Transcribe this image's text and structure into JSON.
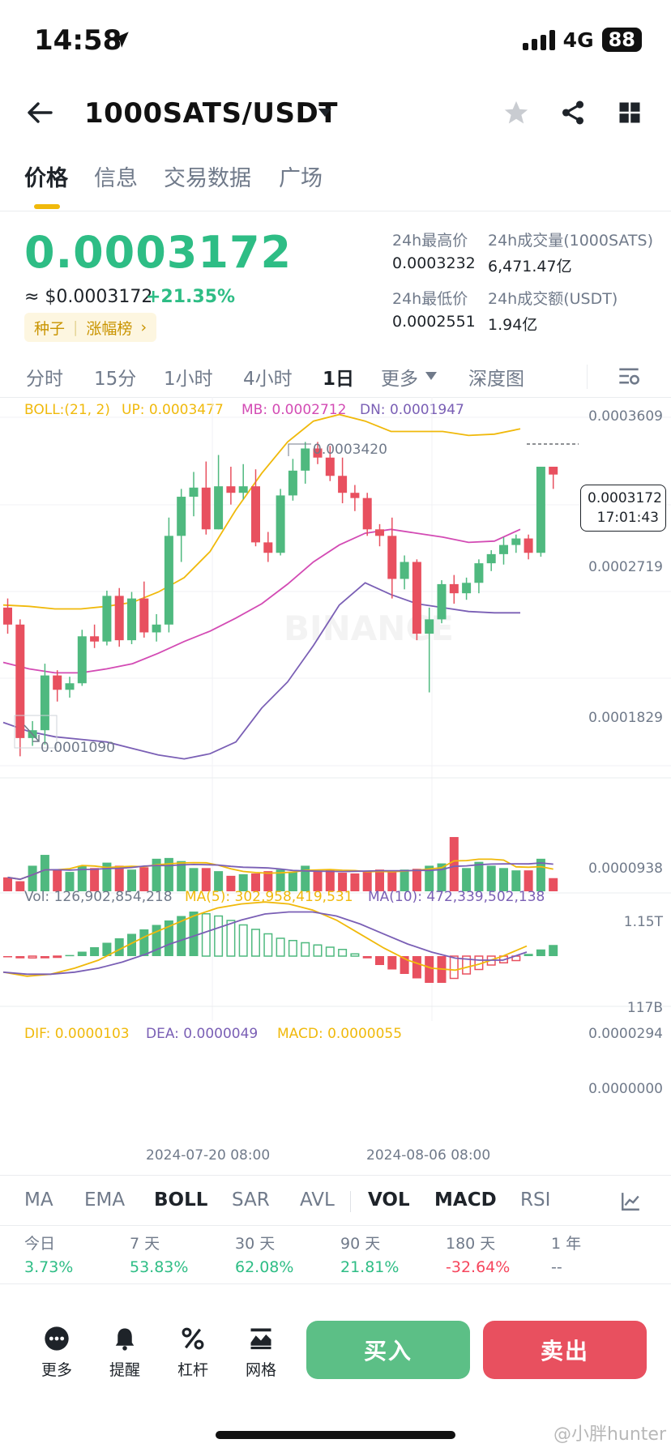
{
  "status_bar": {
    "time": "14:58",
    "network": "4G",
    "battery": "88"
  },
  "header": {
    "pair": "1000SATS/USDT"
  },
  "tabs": [
    "价格",
    "信息",
    "交易数据",
    "广场"
  ],
  "ticker": {
    "last_price": "0.0003172",
    "usd_price": "≈ $0.0003172",
    "change": "+21.35%",
    "tag_seed": "种子",
    "tag_gainers": "涨幅榜",
    "high_label": "24h最高价",
    "high_value": "0.0003232",
    "low_label": "24h最低价",
    "low_value": "0.0002551",
    "vol_label": "24h成交量(1000SATS)",
    "vol_value": "6,471.47亿",
    "amt_label": "24h成交额(USDT)",
    "amt_value": "1.94亿"
  },
  "intervals": [
    "分时",
    "15分",
    "1小时",
    "4小时",
    "1日",
    "更多",
    "深度图"
  ],
  "main_chart": {
    "boll_label": "BOLL:(21, 2)",
    "up": "UP: 0.0003477",
    "mb": "MB: 0.0002712",
    "dn": "DN: 0.0001947",
    "axis": [
      "0.0003609",
      "0.0002719",
      "0.0001829",
      "0.0000938"
    ],
    "high_mark": "0.0003420",
    "low_mark": "0.0001090",
    "last_price_tag": "0.0003172",
    "countdown": "17:01:43",
    "watermark": "BINANCE"
  },
  "volume_chart": {
    "vol": "Vol: 126,902,854,218",
    "ma5": "MA(5): 302,958,419,531",
    "ma10": "MA(10): 472,339,502,138",
    "axis_top": "1.15T",
    "axis_bottom": "117B"
  },
  "macd_chart": {
    "dif": "DIF: 0.0000103",
    "dea": "DEA: 0.0000049",
    "macd": "MACD: 0.0000055",
    "axis_top": "0.0000294",
    "axis_mid": "0.0000000",
    "date1": "2024-07-20 08:00",
    "date2": "2024-08-06 08:00"
  },
  "chart_data": {
    "type": "candlestick",
    "interval": "1日",
    "ylim": [
      9.38e-05,
      0.0003609
    ],
    "candles": [
      {
        "o": 0.000215,
        "h": 0.000222,
        "l": 0.000195,
        "c": 0.000202
      },
      {
        "o": 0.000202,
        "h": 0.000206,
        "l": 0.000101,
        "c": 0.000115
      },
      {
        "o": 0.000115,
        "h": 0.000128,
        "l": 0.000109,
        "c": 0.000121
      },
      {
        "o": 0.000121,
        "h": 0.000172,
        "l": 0.00011,
        "c": 0.000163
      },
      {
        "o": 0.000163,
        "h": 0.000167,
        "l": 0.000143,
        "c": 0.000152
      },
      {
        "o": 0.000152,
        "h": 0.000162,
        "l": 0.000146,
        "c": 0.000157
      },
      {
        "o": 0.000157,
        "h": 0.000198,
        "l": 0.000155,
        "c": 0.000193
      },
      {
        "o": 0.000193,
        "h": 0.000202,
        "l": 0.000184,
        "c": 0.000189
      },
      {
        "o": 0.000189,
        "h": 0.000228,
        "l": 0.000186,
        "c": 0.000224
      },
      {
        "o": 0.000224,
        "h": 0.00023,
        "l": 0.000185,
        "c": 0.00019
      },
      {
        "o": 0.00019,
        "h": 0.000227,
        "l": 0.000187,
        "c": 0.000222
      },
      {
        "o": 0.000222,
        "h": 0.000235,
        "l": 0.000192,
        "c": 0.000196
      },
      {
        "o": 0.000196,
        "h": 0.00021,
        "l": 0.000189,
        "c": 0.000202
      },
      {
        "o": 0.000202,
        "h": 0.000284,
        "l": 0.000196,
        "c": 0.00027
      },
      {
        "o": 0.00027,
        "h": 0.000306,
        "l": 0.00025,
        "c": 0.0003
      },
      {
        "o": 0.0003,
        "h": 0.000319,
        "l": 0.000285,
        "c": 0.000307
      },
      {
        "o": 0.000307,
        "h": 0.000327,
        "l": 0.000271,
        "c": 0.000275
      },
      {
        "o": 0.000275,
        "h": 0.000332,
        "l": 0.000275,
        "c": 0.000308
      },
      {
        "o": 0.000308,
        "h": 0.000323,
        "l": 0.000294,
        "c": 0.000303
      },
      {
        "o": 0.000303,
        "h": 0.000325,
        "l": 0.000298,
        "c": 0.000308
      },
      {
        "o": 0.000308,
        "h": 0.000321,
        "l": 0.000262,
        "c": 0.000265
      },
      {
        "o": 0.000265,
        "h": 0.000273,
        "l": 0.00025,
        "c": 0.000257
      },
      {
        "o": 0.000257,
        "h": 0.000306,
        "l": 0.000255,
        "c": 0.000301
      },
      {
        "o": 0.000301,
        "h": 0.000329,
        "l": 0.000297,
        "c": 0.00032
      },
      {
        "o": 0.00032,
        "h": 0.000342,
        "l": 0.00031,
        "c": 0.000337
      },
      {
        "o": 0.000337,
        "h": 0.000342,
        "l": 0.000325,
        "c": 0.00033
      },
      {
        "o": 0.00033,
        "h": 0.000339,
        "l": 0.000312,
        "c": 0.000316
      },
      {
        "o": 0.000316,
        "h": 0.00033,
        "l": 0.000295,
        "c": 0.000303
      },
      {
        "o": 0.000303,
        "h": 0.000309,
        "l": 0.000289,
        "c": 0.000299
      },
      {
        "o": 0.000299,
        "h": 0.000303,
        "l": 0.00027,
        "c": 0.000275
      },
      {
        "o": 0.000275,
        "h": 0.000279,
        "l": 0.000262,
        "c": 0.00027
      },
      {
        "o": 0.00027,
        "h": 0.000284,
        "l": 0.000222,
        "c": 0.000237
      },
      {
        "o": 0.000237,
        "h": 0.000255,
        "l": 0.000229,
        "c": 0.00025
      },
      {
        "o": 0.00025,
        "h": 0.000252,
        "l": 0.00019,
        "c": 0.000195
      },
      {
        "o": 0.000195,
        "h": 0.000215,
        "l": 0.00015,
        "c": 0.000206
      },
      {
        "o": 0.000206,
        "h": 0.000236,
        "l": 0.000203,
        "c": 0.000233
      },
      {
        "o": 0.000233,
        "h": 0.00024,
        "l": 0.000218,
        "c": 0.000226
      },
      {
        "o": 0.000226,
        "h": 0.000238,
        "l": 0.000221,
        "c": 0.000234
      },
      {
        "o": 0.000234,
        "h": 0.000252,
        "l": 0.000226,
        "c": 0.000249
      },
      {
        "o": 0.000249,
        "h": 0.000259,
        "l": 0.000243,
        "c": 0.000256
      },
      {
        "o": 0.000256,
        "h": 0.000269,
        "l": 0.000248,
        "c": 0.000263
      },
      {
        "o": 0.000263,
        "h": 0.000271,
        "l": 0.000257,
        "c": 0.000268
      },
      {
        "o": 0.000268,
        "h": 0.000271,
        "l": 0.000252,
        "c": 0.000257
      },
      {
        "o": 0.000257,
        "h": 0.000323,
        "l": 0.000254,
        "c": 0.000323
      },
      {
        "o": 0.000323,
        "h": 0.000323,
        "l": 0.000306,
        "c": 0.000317
      }
    ],
    "boll_up": [
      0.000217,
      0.000216,
      0.000214,
      0.000214,
      0.000216,
      0.000219,
      0.000227,
      0.000238,
      0.000258,
      0.00029,
      0.000318,
      0.000342,
      0.000358,
      0.000363,
      0.000358,
      0.00035,
      0.00035,
      0.00035,
      0.000347,
      0.000348,
      0.000352
    ],
    "boll_mid": [
      0.000173,
      0.000168,
      0.000165,
      0.000165,
      0.000168,
      0.000172,
      0.00018,
      0.000189,
      0.000197,
      0.000207,
      0.000218,
      0.000233,
      0.00025,
      0.000263,
      0.000272,
      0.000275,
      0.000272,
      0.000269,
      0.000265,
      0.000266,
      0.000275
    ],
    "boll_dn": [
      0.000127,
      0.00012,
      0.000116,
      0.000114,
      0.000112,
      0.000107,
      0.000102,
      9.9e-05,
      0.000103,
      0.000112,
      0.000138,
      0.000158,
      0.000186,
      0.000217,
      0.000234,
      0.000225,
      0.000218,
      0.000215,
      0.000212,
      0.000211,
      0.000211
    ],
    "volume": {
      "ylim": [
        117,
        1150
      ],
      "values": [
        180,
        130,
        330,
        470,
        280,
        250,
        330,
        300,
        370,
        330,
        280,
        310,
        420,
        430,
        390,
        300,
        300,
        260,
        200,
        220,
        230,
        260,
        280,
        250,
        330,
        260,
        280,
        240,
        230,
        250,
        280,
        260,
        280,
        290,
        330,
        360,
        700,
        300,
        380,
        330,
        300,
        270,
        270,
        420,
        170
      ]
    },
    "macd_hist": [
      -5e-07,
      -1e-06,
      -8e-07,
      -1e-06,
      -5e-07,
      5e-07,
      2e-06,
      4e-06,
      6e-06,
      8e-06,
      1e-05,
      1.2e-05,
      1.4e-05,
      1.6e-05,
      1.8e-05,
      2e-05,
      1.9e-05,
      1.8e-05,
      1.6e-05,
      1.4e-05,
      1.2e-05,
      1e-05,
      8e-06,
      7e-06,
      6e-06,
      5e-06,
      4e-06,
      3e-06,
      1e-06,
      -1e-06,
      -4e-06,
      -6e-06,
      -8e-06,
      -1e-05,
      -1.2e-05,
      -1.2e-05,
      -1e-05,
      -8e-06,
      -6e-06,
      -4e-06,
      -3e-06,
      -2e-06,
      1e-06,
      3e-06,
      5e-06
    ]
  },
  "indicator_tabs": [
    "MA",
    "EMA",
    "BOLL",
    "SAR",
    "AVL",
    "VOL",
    "MACD",
    "RSI"
  ],
  "performance": [
    {
      "label": "今日",
      "value": "3.73%",
      "color": "#2ebd85"
    },
    {
      "label": "7 天",
      "value": "53.83%",
      "color": "#2ebd85"
    },
    {
      "label": "30 天",
      "value": "62.08%",
      "color": "#2ebd85"
    },
    {
      "label": "90 天",
      "value": "21.81%",
      "color": "#2ebd85"
    },
    {
      "label": "180 天",
      "value": "-32.64%",
      "color": "#f6465d"
    },
    {
      "label": "1 年",
      "value": "--",
      "color": "#707a8a"
    }
  ],
  "bottom_bar": {
    "more": "更多",
    "alert": "提醒",
    "margin": "杠杆",
    "grid": "网格",
    "buy": "买入",
    "sell": "卖出"
  },
  "watermark_text": "@小胖hunter"
}
